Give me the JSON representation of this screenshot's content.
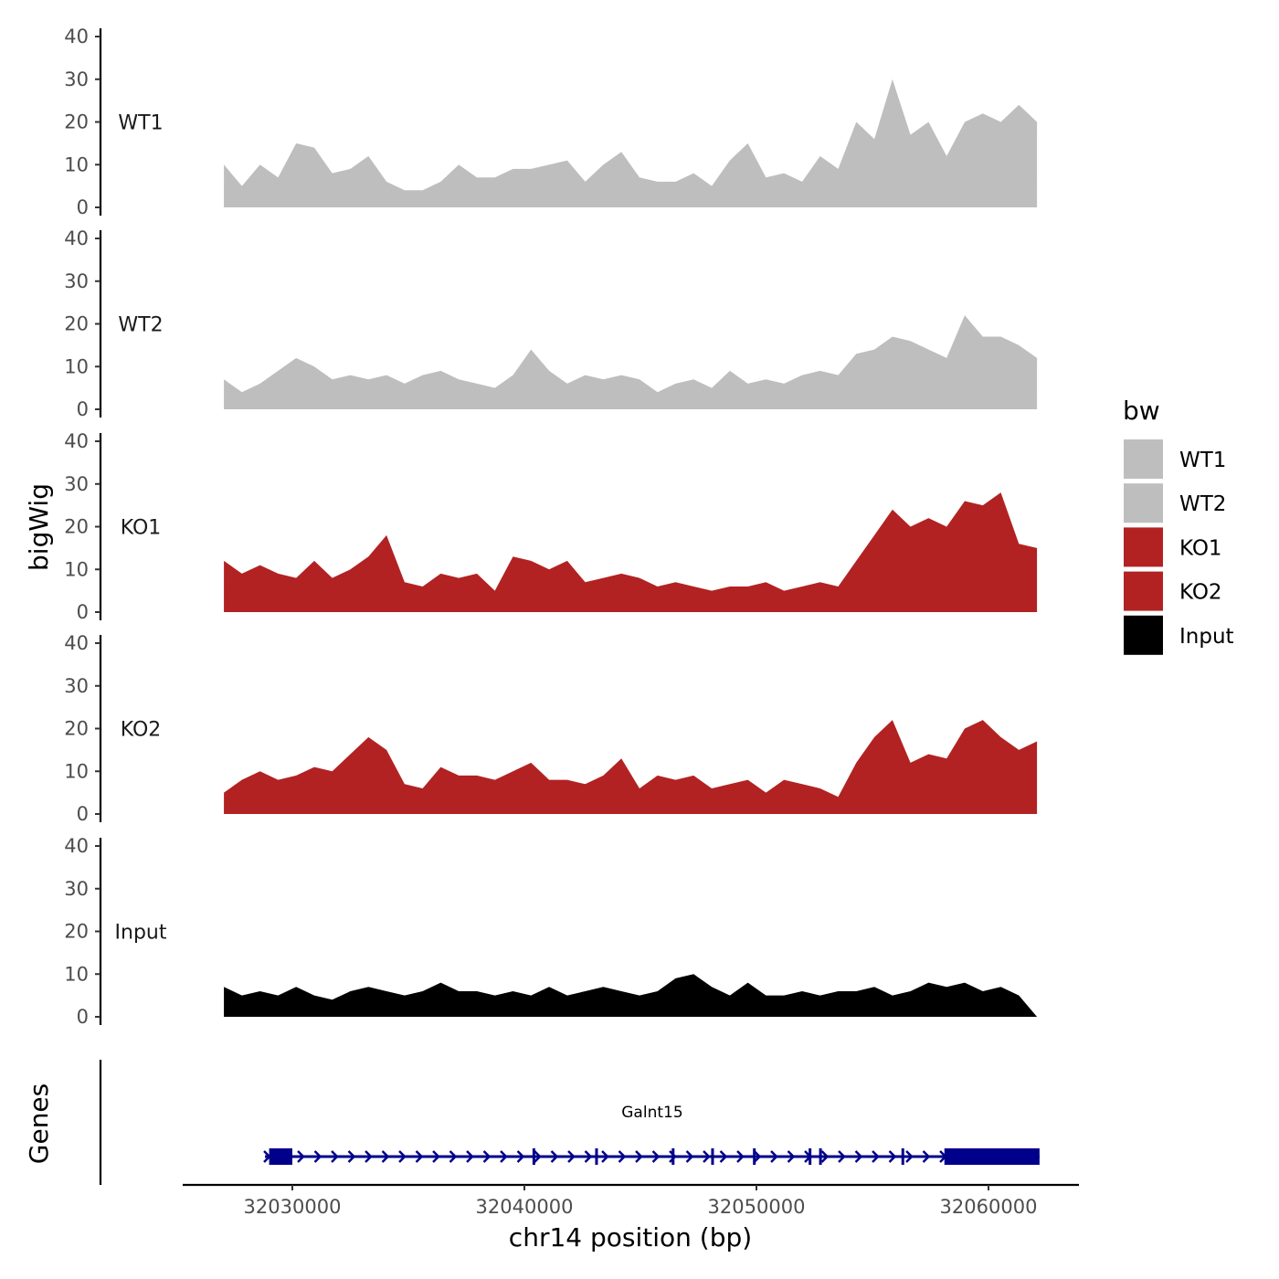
{
  "chart_data": {
    "type": "area",
    "ylabel": "bigWig",
    "xlabel": "chr14 position (bp)",
    "xlim": [
      32024700,
      32064400
    ],
    "x_ticks": [
      32030000,
      32040000,
      32050000,
      32060000
    ],
    "x_tick_labels": [
      "32030000",
      "32040000",
      "32050000",
      "32060000"
    ],
    "ylim": [
      0,
      40
    ],
    "y_ticks": [
      0,
      10,
      20,
      30,
      40
    ],
    "y_tick_labels": [
      "0",
      "10",
      "20",
      "30",
      "40"
    ],
    "signal_x_range": [
      32027050,
      32062090
    ],
    "tracks": [
      {
        "name": "WT1",
        "color": "#bebebe",
        "values": [
          10,
          5,
          10,
          7,
          15,
          14,
          8,
          9,
          12,
          6,
          4,
          4,
          6,
          10,
          7,
          7,
          9,
          9,
          10,
          11,
          6,
          10,
          13,
          7,
          6,
          6,
          8,
          5,
          11,
          15,
          7,
          8,
          6,
          12,
          9,
          20,
          16,
          30,
          17,
          20,
          12,
          20,
          22,
          20,
          24,
          20
        ]
      },
      {
        "name": "WT2",
        "color": "#bebebe",
        "values": [
          7,
          4,
          6,
          9,
          12,
          10,
          7,
          8,
          7,
          8,
          6,
          8,
          9,
          7,
          6,
          5,
          8,
          14,
          9,
          6,
          8,
          7,
          8,
          7,
          4,
          6,
          7,
          5,
          9,
          6,
          7,
          6,
          8,
          9,
          8,
          13,
          14,
          17,
          16,
          14,
          12,
          22,
          17,
          17,
          15,
          12
        ]
      },
      {
        "name": "KO1",
        "color": "#b22222",
        "values": [
          12,
          9,
          11,
          9,
          8,
          12,
          8,
          10,
          13,
          18,
          7,
          6,
          9,
          8,
          9,
          5,
          13,
          12,
          10,
          12,
          7,
          8,
          9,
          8,
          6,
          7,
          6,
          5,
          6,
          6,
          7,
          5,
          6,
          7,
          6,
          12,
          18,
          24,
          20,
          22,
          20,
          26,
          25,
          28,
          16,
          15
        ]
      },
      {
        "name": "KO2",
        "color": "#b22222",
        "values": [
          5,
          8,
          10,
          8,
          9,
          11,
          10,
          14,
          18,
          15,
          7,
          6,
          11,
          9,
          9,
          8,
          10,
          12,
          8,
          8,
          7,
          9,
          13,
          6,
          9,
          8,
          9,
          6,
          7,
          8,
          5,
          8,
          7,
          6,
          4,
          12,
          18,
          22,
          12,
          14,
          13,
          20,
          22,
          18,
          15,
          17
        ]
      },
      {
        "name": "Input",
        "color": "#000000",
        "values": [
          7,
          5,
          6,
          5,
          7,
          5,
          4,
          6,
          7,
          6,
          5,
          6,
          8,
          6,
          6,
          5,
          6,
          5,
          7,
          5,
          6,
          7,
          6,
          5,
          6,
          9,
          10,
          7,
          5,
          8,
          5,
          5,
          6,
          5,
          6,
          6,
          7,
          5,
          6,
          8,
          7,
          8,
          6,
          7,
          5,
          0
        ]
      }
    ],
    "legend": {
      "title": "bw",
      "placement": "right",
      "entries": [
        {
          "label": "WT1",
          "color": "#bebebe"
        },
        {
          "label": "WT2",
          "color": "#bebebe"
        },
        {
          "label": "KO1",
          "color": "#b22222"
        },
        {
          "label": "KO2",
          "color": "#b22222"
        },
        {
          "label": "Input",
          "color": "#000000"
        }
      ]
    },
    "genes": {
      "panel_label": "Genes",
      "color": "#00008b",
      "items": [
        {
          "name": "Galnt15",
          "start": 32028820,
          "end": 32062200,
          "strand": "+",
          "exons": [
            [
              32029000,
              32030000
            ],
            [
              32040350,
              32040450
            ],
            [
              32043050,
              32043150
            ],
            [
              32046350,
              32046450
            ],
            [
              32048050,
              32048150
            ],
            [
              32049850,
              32049950
            ],
            [
              32052250,
              32052350
            ],
            [
              32052700,
              32052800
            ],
            [
              32056250,
              32056350
            ],
            [
              32058100,
              32062200
            ]
          ]
        }
      ]
    }
  }
}
